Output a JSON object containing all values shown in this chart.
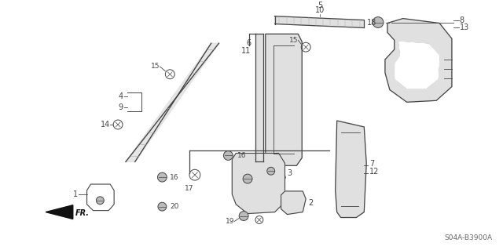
{
  "bg_color": "#ffffff",
  "line_color": "#444444",
  "diagram_code": "S04A-B3900A"
}
